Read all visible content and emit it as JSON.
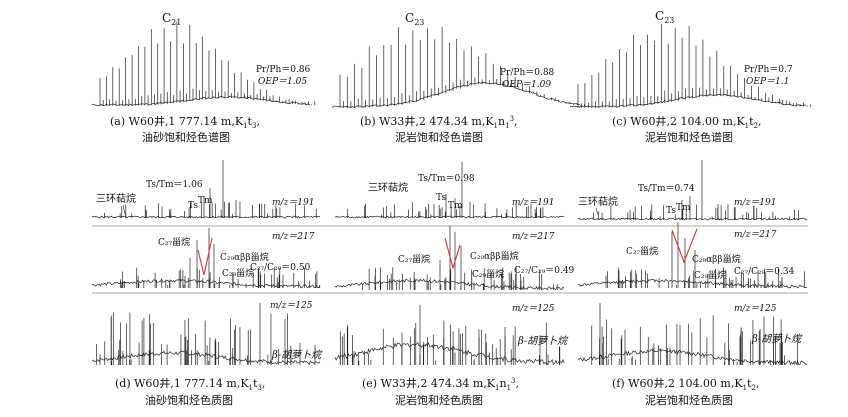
{
  "chart_data": [
    {
      "type": "line",
      "id": "a",
      "kind": "chromatogram",
      "peak_label": "C",
      "peak_label_sub": "21",
      "annotations": [
        "Pr/Ph＝0.86",
        "OEP＝1.05"
      ],
      "caption_line1": "(a) W60井,1 777.14 m,K",
      "caption_sub1": "1",
      "caption_mid": "t",
      "caption_sub2": "3",
      "caption_end": ",",
      "caption_line2": "油砂饱和烃色谱图"
    },
    {
      "type": "line",
      "id": "b",
      "kind": "chromatogram",
      "peak_label": "C",
      "peak_label_sub": "23",
      "annotations": [
        "Pr/Ph＝0.88",
        "OEP＝1.09"
      ],
      "caption_line1": "(b) W33井,2 474.34 m,K",
      "caption_sub1": "1",
      "caption_mid": "n",
      "caption_sub2": "1",
      "caption_sup": "3",
      "caption_end": ",",
      "caption_line2": "泥岩饱和烃色谱图"
    },
    {
      "type": "line",
      "id": "c",
      "kind": "chromatogram",
      "peak_label": "C",
      "peak_label_sub": "23",
      "annotations": [
        "Pr/Ph＝0.7",
        "OEP＝1.1"
      ],
      "caption_line1": "(c) W60井,2 104.00 m,K",
      "caption_sub1": "1",
      "caption_mid": "t",
      "caption_sub2": "2",
      "caption_end": ",",
      "caption_line2": "泥岩饱和烃色谱图"
    },
    {
      "type": "line",
      "id": "d",
      "kind": "mass_chromatogram",
      "m191": {
        "label": "m/z＝191",
        "terpane": "三环萜烷",
        "ts_tm": "Ts/Tm＝1.06",
        "ts": "Ts",
        "tm": "Tm"
      },
      "m217": {
        "label": "m/z＝217",
        "c27": "C₂₇甾烷",
        "c29abb": "C₂₉αββ甾烷",
        "c29": "C₂₉甾烷",
        "ratio": "C₂₇/C₂₉＝0.50"
      },
      "m125": {
        "label": "m/z＝125",
        "carotane": "β-胡萝卜烷"
      },
      "caption_line1": "(d) W60井,1 777.14 m,K",
      "caption_sub1": "1",
      "caption_mid": "t",
      "caption_sub2": "3",
      "caption_end": ",",
      "caption_line2": "油砂饱和烃色质图"
    },
    {
      "type": "line",
      "id": "e",
      "kind": "mass_chromatogram",
      "m191": {
        "label": "m/z＝191",
        "terpane": "三环萜烷",
        "ts_tm": "Ts/Tm＝0.98",
        "ts": "Ts",
        "tm": "Tm"
      },
      "m217": {
        "label": "m/z＝217",
        "c27": "C₂₇甾烷",
        "c29abb": "C₂₉αββ甾烷",
        "c29": "C₂₉甾烷",
        "ratio": "C₂₇/C₂₉＝0.49"
      },
      "m125": {
        "label": "m/z＝125",
        "carotane": "β-胡萝卜烷"
      },
      "caption_line1": "(e) W33井,2 474.34 m,K",
      "caption_sub1": "1",
      "caption_mid": "n",
      "caption_sub2": "1",
      "caption_sup": "3",
      "caption_end": ",",
      "caption_line2": "泥岩饱和烃色质图"
    },
    {
      "type": "line",
      "id": "f",
      "kind": "mass_chromatogram",
      "m191": {
        "label": "m/z＝191",
        "terpane": "三环萜烷",
        "ts_tm": "Ts/Tm＝0.74",
        "ts": "Ts",
        "tm": "Tm"
      },
      "m217": {
        "label": "m/z＝217",
        "c27": "C₂₇甾烷",
        "c29abb": "C₂₉αββ甾烷",
        "c29": "C₂₉甾烷",
        "ratio": "C₂₇/C₂₉＝0.34"
      },
      "m125": {
        "label": "m/z＝125",
        "carotane": "β-胡萝卜烷"
      },
      "caption_line1": "(f) W60井,2 104.00 m,K",
      "caption_sub1": "1",
      "caption_mid": "t",
      "caption_sub2": "2",
      "caption_end": ",",
      "caption_line2": "泥岩饱和烃色质图"
    }
  ]
}
